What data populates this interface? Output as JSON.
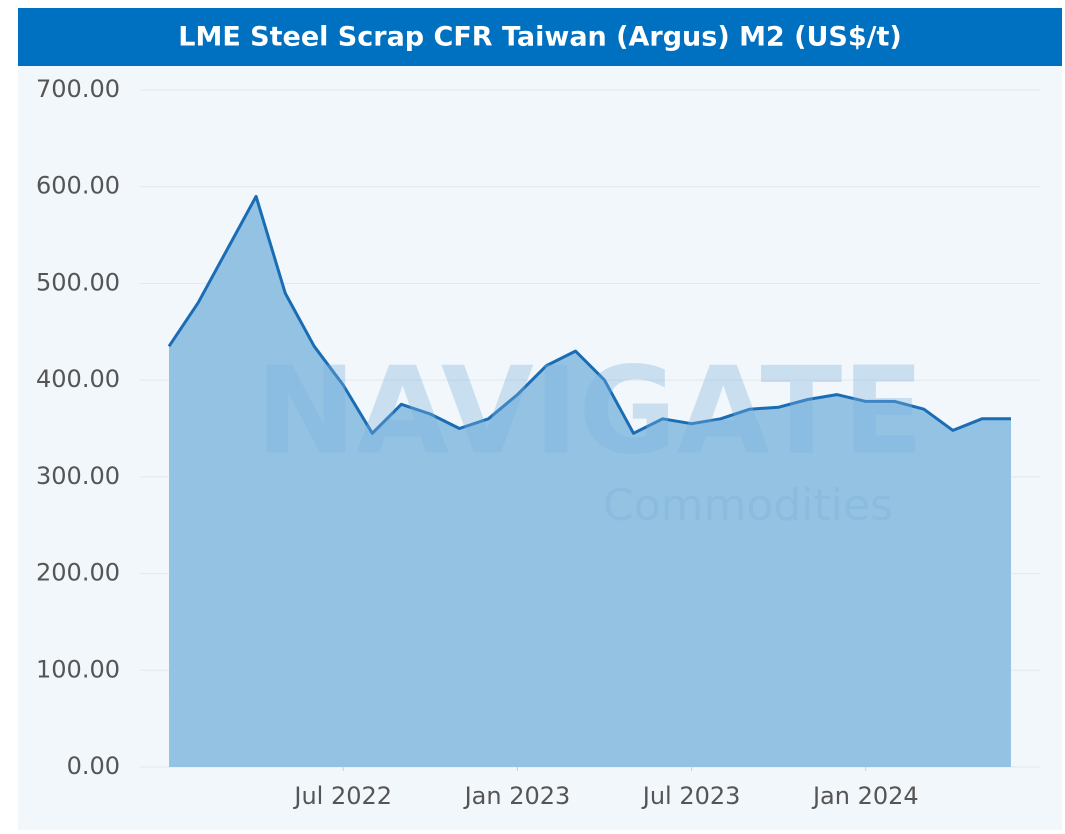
{
  "chart_data": {
    "type": "area",
    "title": "LME Steel Scrap CFR Taiwan (Argus) M2 (US$/t)",
    "watermark": [
      "NAVIGATE",
      "Commodities"
    ],
    "x": [
      "2022-01",
      "2022-02",
      "2022-03",
      "2022-04",
      "2022-05",
      "2022-06",
      "2022-07",
      "2022-08",
      "2022-09",
      "2022-10",
      "2022-11",
      "2022-12",
      "2023-01",
      "2023-02",
      "2023-03",
      "2023-04",
      "2023-05",
      "2023-06",
      "2023-07",
      "2023-08",
      "2023-09",
      "2023-10",
      "2023-11",
      "2023-12",
      "2024-01",
      "2024-02",
      "2024-03",
      "2024-04",
      "2024-05",
      "2024-06"
    ],
    "series": [
      {
        "name": "LME Steel Scrap CFR Taiwan (Argus) M2",
        "color": "#1a6db5",
        "fill": "#93c2e3",
        "values": [
          435,
          480,
          535,
          590,
          490,
          435,
          395,
          345,
          375,
          365,
          350,
          360,
          385,
          415,
          430,
          400,
          345,
          360,
          355,
          360,
          370,
          372,
          380,
          385,
          378,
          378,
          370,
          348,
          360,
          360
        ]
      }
    ],
    "xlim": [
      "2021-12",
      "2024-07"
    ],
    "xticks": [
      {
        "value": "2022-07",
        "label": "Jul 2022"
      },
      {
        "value": "2023-01",
        "label": "Jan 2023"
      },
      {
        "value": "2023-07",
        "label": "Jul 2023"
      },
      {
        "value": "2024-01",
        "label": "Jan 2024"
      }
    ],
    "ylim": [
      0,
      700
    ],
    "yticks": [
      {
        "value": 0,
        "label": "0.00"
      },
      {
        "value": 100,
        "label": "100.00"
      },
      {
        "value": 200,
        "label": "200.00"
      },
      {
        "value": 300,
        "label": "300.00"
      },
      {
        "value": 400,
        "label": "400.00"
      },
      {
        "value": 500,
        "label": "500.00"
      },
      {
        "value": 600,
        "label": "600.00"
      },
      {
        "value": 700,
        "label": "700.00"
      }
    ],
    "grid": true
  }
}
